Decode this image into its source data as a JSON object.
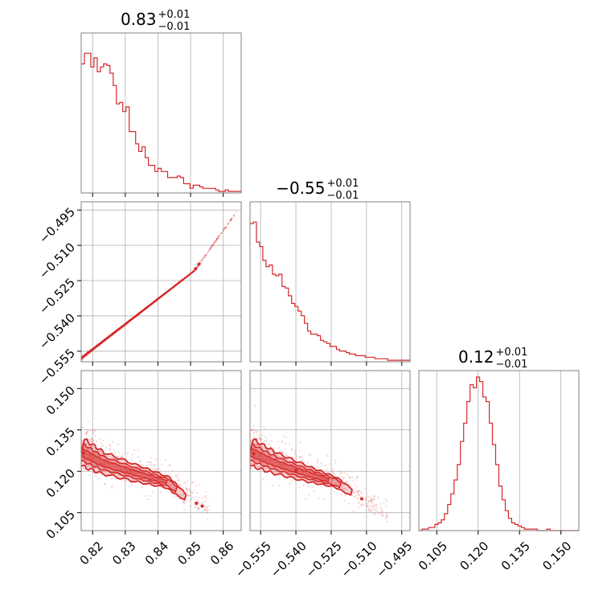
{
  "chart_data": {
    "type": "corner",
    "color": "#d62728",
    "parameters": [
      {
        "range": [
          0.8165,
          0.8655
        ],
        "ticks": [
          0.82,
          0.83,
          0.84,
          0.85,
          0.86
        ],
        "tick_labels": [
          "0.82",
          "0.83",
          "0.84",
          "0.85",
          "0.86"
        ],
        "title": {
          "median": "0.83",
          "plus": "+0.01",
          "minus": "−0.01"
        }
      },
      {
        "range": [
          -0.5595,
          -0.4915
        ],
        "ticks": [
          -0.555,
          -0.54,
          -0.525,
          -0.51,
          -0.495
        ],
        "tick_labels": [
          "−0.555",
          "−0.540",
          "−0.525",
          "−0.510",
          "−0.495"
        ],
        "title": {
          "median": "−0.55",
          "plus": "+0.01",
          "minus": "−0.01"
        }
      },
      {
        "range": [
          0.0985,
          0.1565
        ],
        "ticks": [
          0.105,
          0.12,
          0.135,
          0.15
        ],
        "tick_labels": [
          "0.105",
          "0.120",
          "0.135",
          "0.150"
        ],
        "title": {
          "median": "0.12",
          "plus": "+0.01",
          "minus": "−0.01"
        }
      }
    ],
    "histograms": [
      {
        "bins": [
          0.8165,
          0.8655
        ],
        "counts": [
          0.84,
          0.91,
          0.91,
          0.82,
          0.88,
          0.79,
          0.82,
          0.84,
          0.83,
          0.78,
          0.7,
          0.58,
          0.59,
          0.53,
          0.56,
          0.4,
          0.4,
          0.32,
          0.27,
          0.3,
          0.23,
          0.18,
          0.18,
          0.14,
          0.16,
          0.14,
          0.14,
          0.1,
          0.1,
          0.1,
          0.11,
          0.1,
          0.06,
          0.06,
          0.03,
          0.05,
          0.05,
          0.04,
          0.03,
          0.03,
          0.03,
          0.03,
          0.02,
          0.01,
          0.01,
          0.02,
          0.01,
          0.01,
          0.01,
          0.01
        ]
      },
      {
        "bins": [
          -0.5595,
          -0.4915
        ],
        "counts": [
          0.9,
          0.91,
          0.78,
          0.75,
          0.66,
          0.62,
          0.63,
          0.57,
          0.56,
          0.57,
          0.49,
          0.48,
          0.43,
          0.38,
          0.36,
          0.33,
          0.3,
          0.25,
          0.2,
          0.18,
          0.18,
          0.17,
          0.14,
          0.13,
          0.12,
          0.1,
          0.1,
          0.08,
          0.07,
          0.07,
          0.06,
          0.05,
          0.05,
          0.04,
          0.04,
          0.04,
          0.03,
          0.03,
          0.03,
          0.02,
          0.02,
          0.02,
          0.02,
          0.01,
          0.01,
          0.01,
          0.01,
          0.01,
          0.01,
          0.01
        ]
      },
      {
        "bins": [
          0.0985,
          0.1565
        ],
        "counts": [
          0.0,
          0.01,
          0.01,
          0.02,
          0.02,
          0.04,
          0.05,
          0.07,
          0.11,
          0.17,
          0.24,
          0.33,
          0.43,
          0.58,
          0.7,
          0.84,
          0.95,
          0.93,
          1.0,
          0.97,
          0.87,
          0.84,
          0.7,
          0.56,
          0.43,
          0.29,
          0.2,
          0.13,
          0.08,
          0.05,
          0.04,
          0.03,
          0.02,
          0.01,
          0.01,
          0.01,
          0.01,
          0.0,
          0.0,
          0.0,
          0.01,
          0.0,
          0.0,
          0.0,
          0.0,
          0.0,
          0.0,
          0.0,
          0.0,
          0.0
        ]
      }
    ],
    "ridges": {
      "p1_vs_p0": {
        "x": [
          0.8165,
          0.851,
          0.864
        ],
        "y": [
          -0.558,
          -0.521,
          -0.496
        ]
      },
      "p2_vs_p0": {
        "x": [
          0.8165,
          0.823,
          0.834,
          0.843,
          0.849,
          0.856
        ],
        "y": [
          0.127,
          0.123,
          0.119,
          0.116,
          0.11,
          0.106
        ]
      },
      "p2_vs_p1": {
        "x": [
          -0.5595,
          -0.549,
          -0.535,
          -0.523,
          -0.512,
          -0.501
        ],
        "y": [
          0.127,
          0.123,
          0.119,
          0.116,
          0.11,
          0.103
        ]
      }
    }
  }
}
